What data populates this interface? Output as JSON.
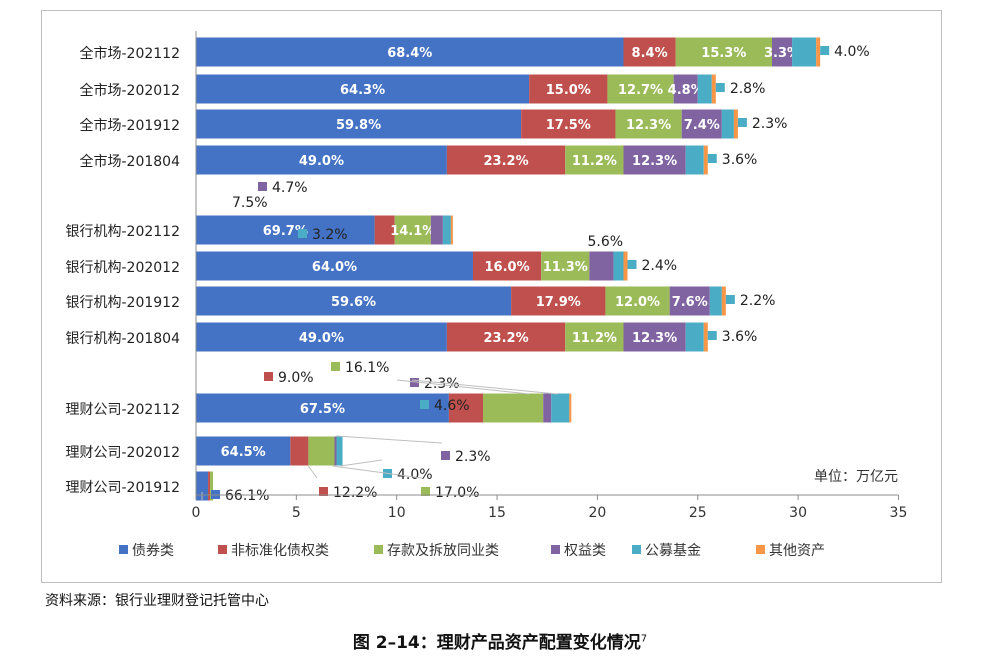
{
  "chart_data": {
    "type": "bar",
    "orientation": "horizontal",
    "stacked": true,
    "unit_note": "单位：万亿元",
    "xlim": [
      0,
      35
    ],
    "xticks": [
      0,
      5,
      10,
      15,
      20,
      25,
      30,
      35
    ],
    "legend_position": "bottom",
    "series_names": [
      "债券类",
      "非标准化债权类",
      "存款及拆放同业类",
      "权益类",
      "公募基金",
      "其他资产"
    ],
    "colors": [
      "#4472c4",
      "#c0504d",
      "#9bbb59",
      "#8064a2",
      "#4bacc6",
      "#f79646"
    ],
    "groups": [
      {
        "rows": [
          {
            "label": "全市场-202112",
            "values": [
              21.3,
              2.6,
              4.8,
              1.0,
              1.2,
              0.2
            ],
            "pct": [
              "68.4%",
              "8.4%",
              "15.3%",
              "3.3%",
              "",
              ""
            ],
            "callouts": [
              {
                "text": "4.0%",
                "series": 4
              }
            ]
          },
          {
            "label": "全市场-202012",
            "values": [
              16.6,
              3.9,
              3.3,
              1.2,
              0.7,
              0.2
            ],
            "pct": [
              "64.3%",
              "15.0%",
              "12.7%",
              "4.8%",
              "",
              ""
            ],
            "callouts": [
              {
                "text": "2.8%",
                "series": 4
              }
            ]
          },
          {
            "label": "全市场-201912",
            "values": [
              16.2,
              4.7,
              3.3,
              2.0,
              0.6,
              0.2
            ],
            "pct": [
              "59.8%",
              "17.5%",
              "12.3%",
              "7.4%",
              "",
              ""
            ],
            "callouts": [
              {
                "text": "2.3%",
                "series": 4
              }
            ]
          },
          {
            "label": "全市场-201804",
            "values": [
              12.5,
              5.9,
              2.9,
              3.1,
              0.9,
              0.2
            ],
            "pct": [
              "49.0%",
              "23.2%",
              "11.2%",
              "12.3%",
              "",
              ""
            ],
            "callouts": [
              {
                "text": "3.6%",
                "series": 4
              }
            ]
          }
        ]
      },
      {
        "rows": [
          {
            "label": "银行机构-202112",
            "values": [
              8.9,
              1.0,
              1.8,
              0.6,
              0.4,
              0.1
            ],
            "pct": [
              "69.7%",
              "",
              "14.1%",
              "",
              "",
              ""
            ],
            "callouts": [
              {
                "text": "7.5%",
                "series": 1,
                "plain": true
              },
              {
                "text": "4.7%",
                "series": 3
              },
              {
                "text": "3.2%",
                "series": 4
              }
            ]
          },
          {
            "label": "银行机构-202012",
            "values": [
              13.8,
              3.4,
              2.4,
              1.2,
              0.5,
              0.2
            ],
            "pct": [
              "64.0%",
              "16.0%",
              "11.3%",
              "",
              "",
              ""
            ],
            "callouts": [
              {
                "text": "5.6%",
                "series": 3,
                "plain": true
              },
              {
                "text": "2.4%",
                "series": 4
              }
            ]
          },
          {
            "label": "银行机构-201912",
            "values": [
              15.7,
              4.7,
              3.2,
              2.0,
              0.6,
              0.2
            ],
            "pct": [
              "59.6%",
              "17.9%",
              "12.0%",
              "7.6%",
              "",
              ""
            ],
            "callouts": [
              {
                "text": "2.2%",
                "series": 4
              }
            ]
          },
          {
            "label": "银行机构-201804",
            "values": [
              12.5,
              5.9,
              2.9,
              3.1,
              0.9,
              0.2
            ],
            "pct": [
              "49.0%",
              "23.2%",
              "11.2%",
              "12.3%",
              "",
              ""
            ],
            "callouts": [
              {
                "text": "3.6%",
                "series": 4
              }
            ]
          }
        ]
      },
      {
        "rows": [
          {
            "label": "理财公司-202112",
            "values": [
              12.6,
              1.7,
              3.0,
              0.4,
              0.9,
              0.1
            ],
            "pct": [
              "67.5%",
              "",
              "",
              "",
              "",
              ""
            ],
            "callouts": [
              {
                "text": "9.0%",
                "series": 1
              },
              {
                "text": "16.1%",
                "series": 2
              },
              {
                "text": "2.3%",
                "series": 3
              },
              {
                "text": "4.6%",
                "series": 4
              }
            ]
          },
          {
            "label": "理财公司-202012",
            "values": [
              4.7,
              0.9,
              1.3,
              0.1,
              0.3,
              0.0
            ],
            "pct": [
              "64.5%",
              "",
              "",
              "",
              "",
              ""
            ],
            "callouts": [
              {
                "text": "2.3%",
                "series": 3
              },
              {
                "text": "4.0%",
                "series": 4
              },
              {
                "text": "12.2%",
                "series": 1
              },
              {
                "text": "17.0%",
                "series": 2
              }
            ]
          },
          {
            "label": "理财公司-201912",
            "values": [
              0.6,
              0.1,
              0.15,
              0.0,
              0.0,
              0.0
            ],
            "pct": [
              "",
              "",
              "",
              "",
              "",
              ""
            ],
            "callouts": [
              {
                "text": "66.1%",
                "series": 0
              }
            ]
          }
        ]
      }
    ]
  },
  "source_text": "资料来源：银行业理财登记托管中心",
  "caption": "图 2–14：理财产品资产配置变化情况",
  "caption_sup": "7"
}
